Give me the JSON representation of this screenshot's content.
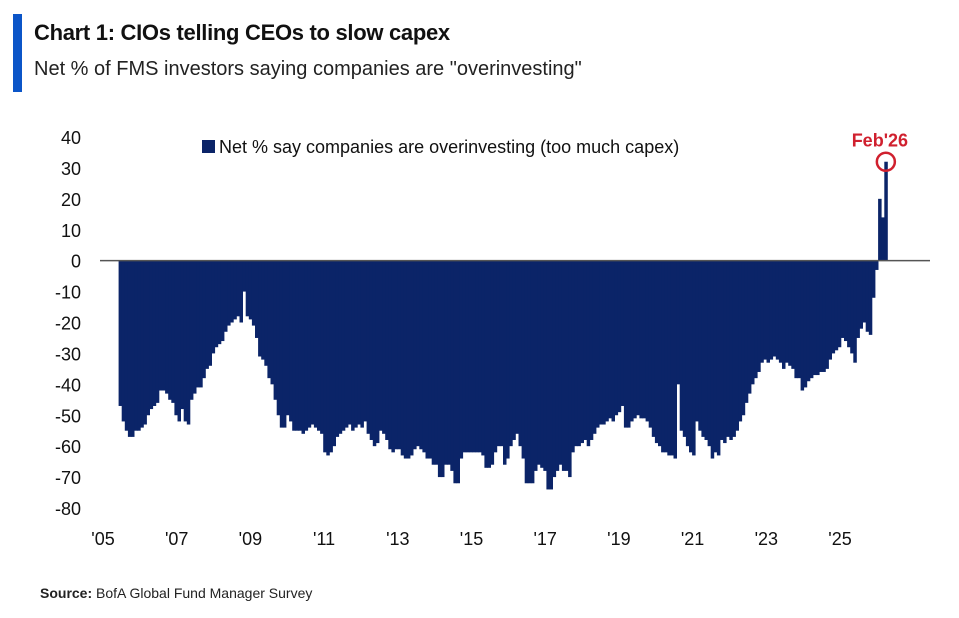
{
  "header": {
    "title": "Chart 1: CIOs telling CEOs to slow capex",
    "subtitle": "Net % of FMS investors saying companies are \"overinvesting\""
  },
  "source": {
    "label": "Source:",
    "text": "BofA Global Fund Manager Survey"
  },
  "colors": {
    "bar": "#0b2468",
    "accent": "#0b55c8",
    "annotation": "#d0202e",
    "zero_line": "#555555"
  },
  "chart_data": {
    "type": "bar",
    "title": "Chart 1: CIOs telling CEOs to slow capex",
    "xlabel": "",
    "ylabel": "",
    "ylim": [
      -80,
      40
    ],
    "yticks": [
      40,
      30,
      20,
      10,
      0,
      -10,
      -20,
      -30,
      -40,
      -50,
      -60,
      -70,
      -80
    ],
    "xticks": [
      "'05",
      "'07",
      "'09",
      "'11",
      "'13",
      "'15",
      "'17",
      "'19",
      "'21",
      "'23",
      "'25"
    ],
    "frequency": "monthly",
    "start": "2005-07",
    "end": "2026-02",
    "legend": {
      "label": "Net % say companies are overinvesting (too much capex)",
      "position": "top"
    },
    "annotation": {
      "label": "Feb'26",
      "target": "2026-02"
    },
    "series": [
      {
        "name": "Net % say companies are overinvesting (too much capex)",
        "values": [
          -47,
          -52,
          -55,
          -57,
          -57,
          -55,
          -55,
          -54,
          -53,
          -50,
          -48,
          -47,
          -46,
          -42,
          -42,
          -43,
          -45,
          -46,
          -50,
          -52,
          -48,
          -52,
          -53,
          -45,
          -43,
          -41,
          -41,
          -38,
          -35,
          -34,
          -30,
          -28,
          -27,
          -26,
          -23,
          -21,
          -20,
          -19,
          -18,
          -20,
          -10,
          -18,
          -19,
          -21,
          -25,
          -31,
          -32,
          -34,
          -38,
          -40,
          -45,
          -50,
          -54,
          -54,
          -50,
          -52,
          -55,
          -55,
          -55,
          -56,
          -55,
          -54,
          -53,
          -54,
          -55,
          -56,
          -62,
          -63,
          -62,
          -60,
          -57,
          -56,
          -55,
          -54,
          -53,
          -55,
          -54,
          -53,
          -54,
          -52,
          -56,
          -58,
          -60,
          -59,
          -55,
          -56,
          -58,
          -61,
          -62,
          -61,
          -61,
          -63,
          -64,
          -64,
          -63,
          -61,
          -60,
          -61,
          -62,
          -64,
          -64,
          -66,
          -66,
          -70,
          -70,
          -66,
          -66,
          -68,
          -72,
          -72,
          -64,
          -62,
          -62,
          -62,
          -62,
          -62,
          -62,
          -63,
          -67,
          -67,
          -66,
          -62,
          -60,
          -60,
          -66,
          -64,
          -60,
          -58,
          -56,
          -60,
          -64,
          -72,
          -72,
          -72,
          -68,
          -66,
          -67,
          -68,
          -74,
          -74,
          -70,
          -68,
          -66,
          -68,
          -68,
          -70,
          -62,
          -60,
          -60,
          -59,
          -58,
          -60,
          -58,
          -56,
          -54,
          -53,
          -53,
          -52,
          -51,
          -52,
          -50,
          -49,
          -47,
          -54,
          -54,
          -52,
          -51,
          -50,
          -51,
          -51,
          -52,
          -54,
          -57,
          -59,
          -60,
          -62,
          -62,
          -63,
          -63,
          -64,
          -40,
          -55,
          -57,
          -60,
          -62,
          -63,
          -52,
          -55,
          -57,
          -58,
          -60,
          -64,
          -62,
          -63,
          -58,
          -59,
          -57,
          -58,
          -57,
          -55,
          -52,
          -50,
          -46,
          -43,
          -40,
          -38,
          -36,
          -33,
          -32,
          -33,
          -32,
          -31,
          -32,
          -33,
          -35,
          -33,
          -34,
          -35,
          -38,
          -38,
          -42,
          -41,
          -39,
          -38,
          -37,
          -37,
          -36,
          -36,
          -35,
          -32,
          -30,
          -29,
          -28,
          -25,
          -26,
          -28,
          -30,
          -33,
          -25,
          -22,
          -20,
          -23,
          -24,
          -12,
          -3,
          20,
          14,
          32
        ]
      }
    ]
  }
}
